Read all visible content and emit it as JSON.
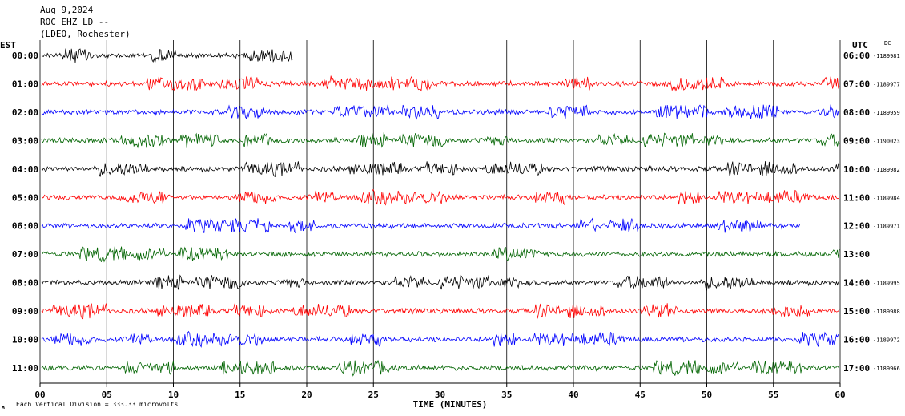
{
  "header": {
    "date": "Aug 9,2024",
    "station": "ROC EHZ LD --",
    "network": "(LDEO, Rochester)"
  },
  "left_axis_label": "EST",
  "right_axis_label": "UTC",
  "dc_label": "DC",
  "footer": {
    "scale_note": "Each Vertical Division =  333.33 microvolts"
  },
  "chart_data": {
    "type": "line",
    "title": "Aug 9,2024",
    "xlabel": "TIME (MINUTES)",
    "ylabel": "",
    "xlim": [
      0,
      60
    ],
    "x_ticks": [
      "00",
      "05",
      "10",
      "15",
      "20",
      "25",
      "30",
      "35",
      "40",
      "45",
      "50",
      "55",
      "60"
    ],
    "series": [
      {
        "name": "00:00",
        "utc": "06:00",
        "dc": "-1189981",
        "color": "#000000",
        "end_min": 19
      },
      {
        "name": "01:00",
        "utc": "07:00",
        "dc": "-1189977",
        "color": "#ff0000",
        "end_min": 60
      },
      {
        "name": "02:00",
        "utc": "08:00",
        "dc": "-1189959",
        "color": "#0000ff",
        "end_min": 60
      },
      {
        "name": "03:00",
        "utc": "09:00",
        "dc": "-1190023",
        "color": "#006400",
        "end_min": 60
      },
      {
        "name": "04:00",
        "utc": "10:00",
        "dc": "-1189982",
        "color": "#000000",
        "end_min": 60
      },
      {
        "name": "05:00",
        "utc": "11:00",
        "dc": "-1189984",
        "color": "#ff0000",
        "end_min": 60
      },
      {
        "name": "06:00",
        "utc": "12:00",
        "dc": "-1189971",
        "color": "#0000ff",
        "end_min": 57
      },
      {
        "name": "07:00",
        "utc": "13:00",
        "dc": "",
        "color": "#006400",
        "end_min": 60
      },
      {
        "name": "08:00",
        "utc": "14:00",
        "dc": "-1189995",
        "color": "#000000",
        "end_min": 60
      },
      {
        "name": "09:00",
        "utc": "15:00",
        "dc": "-1189988",
        "color": "#ff0000",
        "end_min": 60
      },
      {
        "name": "10:00",
        "utc": "16:00",
        "dc": "-1189972",
        "color": "#0000ff",
        "end_min": 60
      },
      {
        "name": "11:00",
        "utc": "17:00",
        "dc": "-1189966",
        "color": "#006400",
        "end_min": 60
      }
    ]
  }
}
